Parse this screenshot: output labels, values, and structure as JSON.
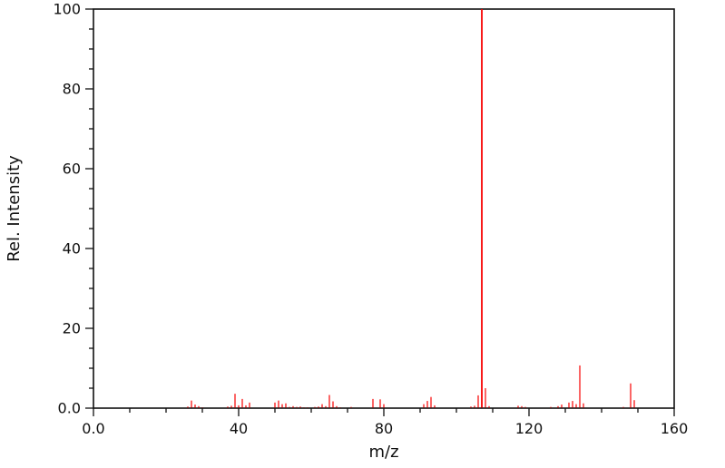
{
  "window": {
    "background_color": "#ffffff"
  },
  "chart_data": {
    "type": "bar",
    "subtype": "mass-spectrum-stick-plot",
    "title": "",
    "xlabel": "m/z",
    "ylabel": "Rel. Intensity",
    "xlim": [
      0,
      160
    ],
    "ylim": [
      0,
      100
    ],
    "grid": "off",
    "legend": "none",
    "frame": "full-box",
    "x_major_ticks": [
      0,
      40,
      80,
      120,
      160
    ],
    "x_major_labels": [
      "0.0",
      "40",
      "80",
      "120",
      "160"
    ],
    "x_minor_step": 10,
    "y_major_ticks": [
      0,
      20,
      40,
      60,
      80,
      100
    ],
    "y_major_labels": [
      "0.0",
      "20",
      "40",
      "60",
      "80",
      "100"
    ],
    "y_minor_step": 5,
    "series_color": "#f80000",
    "axis_color": "#111111",
    "peaks": [
      [
        26,
        0.4
      ],
      [
        27,
        1.9
      ],
      [
        28,
        0.9
      ],
      [
        29,
        0.5
      ],
      [
        30,
        0.2
      ],
      [
        37,
        0.4
      ],
      [
        38,
        0.6
      ],
      [
        39,
        3.6
      ],
      [
        40,
        0.7
      ],
      [
        41,
        2.3
      ],
      [
        42,
        0.7
      ],
      [
        43,
        1.4
      ],
      [
        50,
        1.4
      ],
      [
        51,
        1.9
      ],
      [
        52,
        1.0
      ],
      [
        53,
        1.2
      ],
      [
        54,
        0.3
      ],
      [
        55,
        0.5
      ],
      [
        56,
        0.3
      ],
      [
        57,
        0.4
      ],
      [
        58,
        0.2
      ],
      [
        59,
        0.2
      ],
      [
        61,
        0.3
      ],
      [
        62,
        0.4
      ],
      [
        63,
        1.0
      ],
      [
        64,
        0.5
      ],
      [
        65,
        3.3
      ],
      [
        66,
        1.7
      ],
      [
        67,
        0.5
      ],
      [
        68,
        0.2
      ],
      [
        71,
        0.3
      ],
      [
        77,
        2.3
      ],
      [
        79,
        2.2
      ],
      [
        80,
        1.0
      ],
      [
        91,
        1.0
      ],
      [
        92,
        1.8
      ],
      [
        93,
        2.8
      ],
      [
        94,
        0.7
      ],
      [
        104,
        0.4
      ],
      [
        105,
        0.6
      ],
      [
        106,
        3.2
      ],
      [
        107,
        100
      ],
      [
        108,
        5.0
      ],
      [
        109,
        0.5
      ],
      [
        117,
        0.6
      ],
      [
        118,
        0.5
      ],
      [
        119,
        0.3
      ],
      [
        126,
        0.3
      ],
      [
        128,
        0.5
      ],
      [
        129,
        0.9
      ],
      [
        131,
        1.4
      ],
      [
        132,
        1.8
      ],
      [
        133,
        1.0
      ],
      [
        134,
        10.7
      ],
      [
        135,
        1.2
      ],
      [
        146,
        0.3
      ],
      [
        148,
        6.2
      ],
      [
        149,
        2.0
      ]
    ],
    "base_peak_mz": 107,
    "base_peak_intensity": 100
  }
}
